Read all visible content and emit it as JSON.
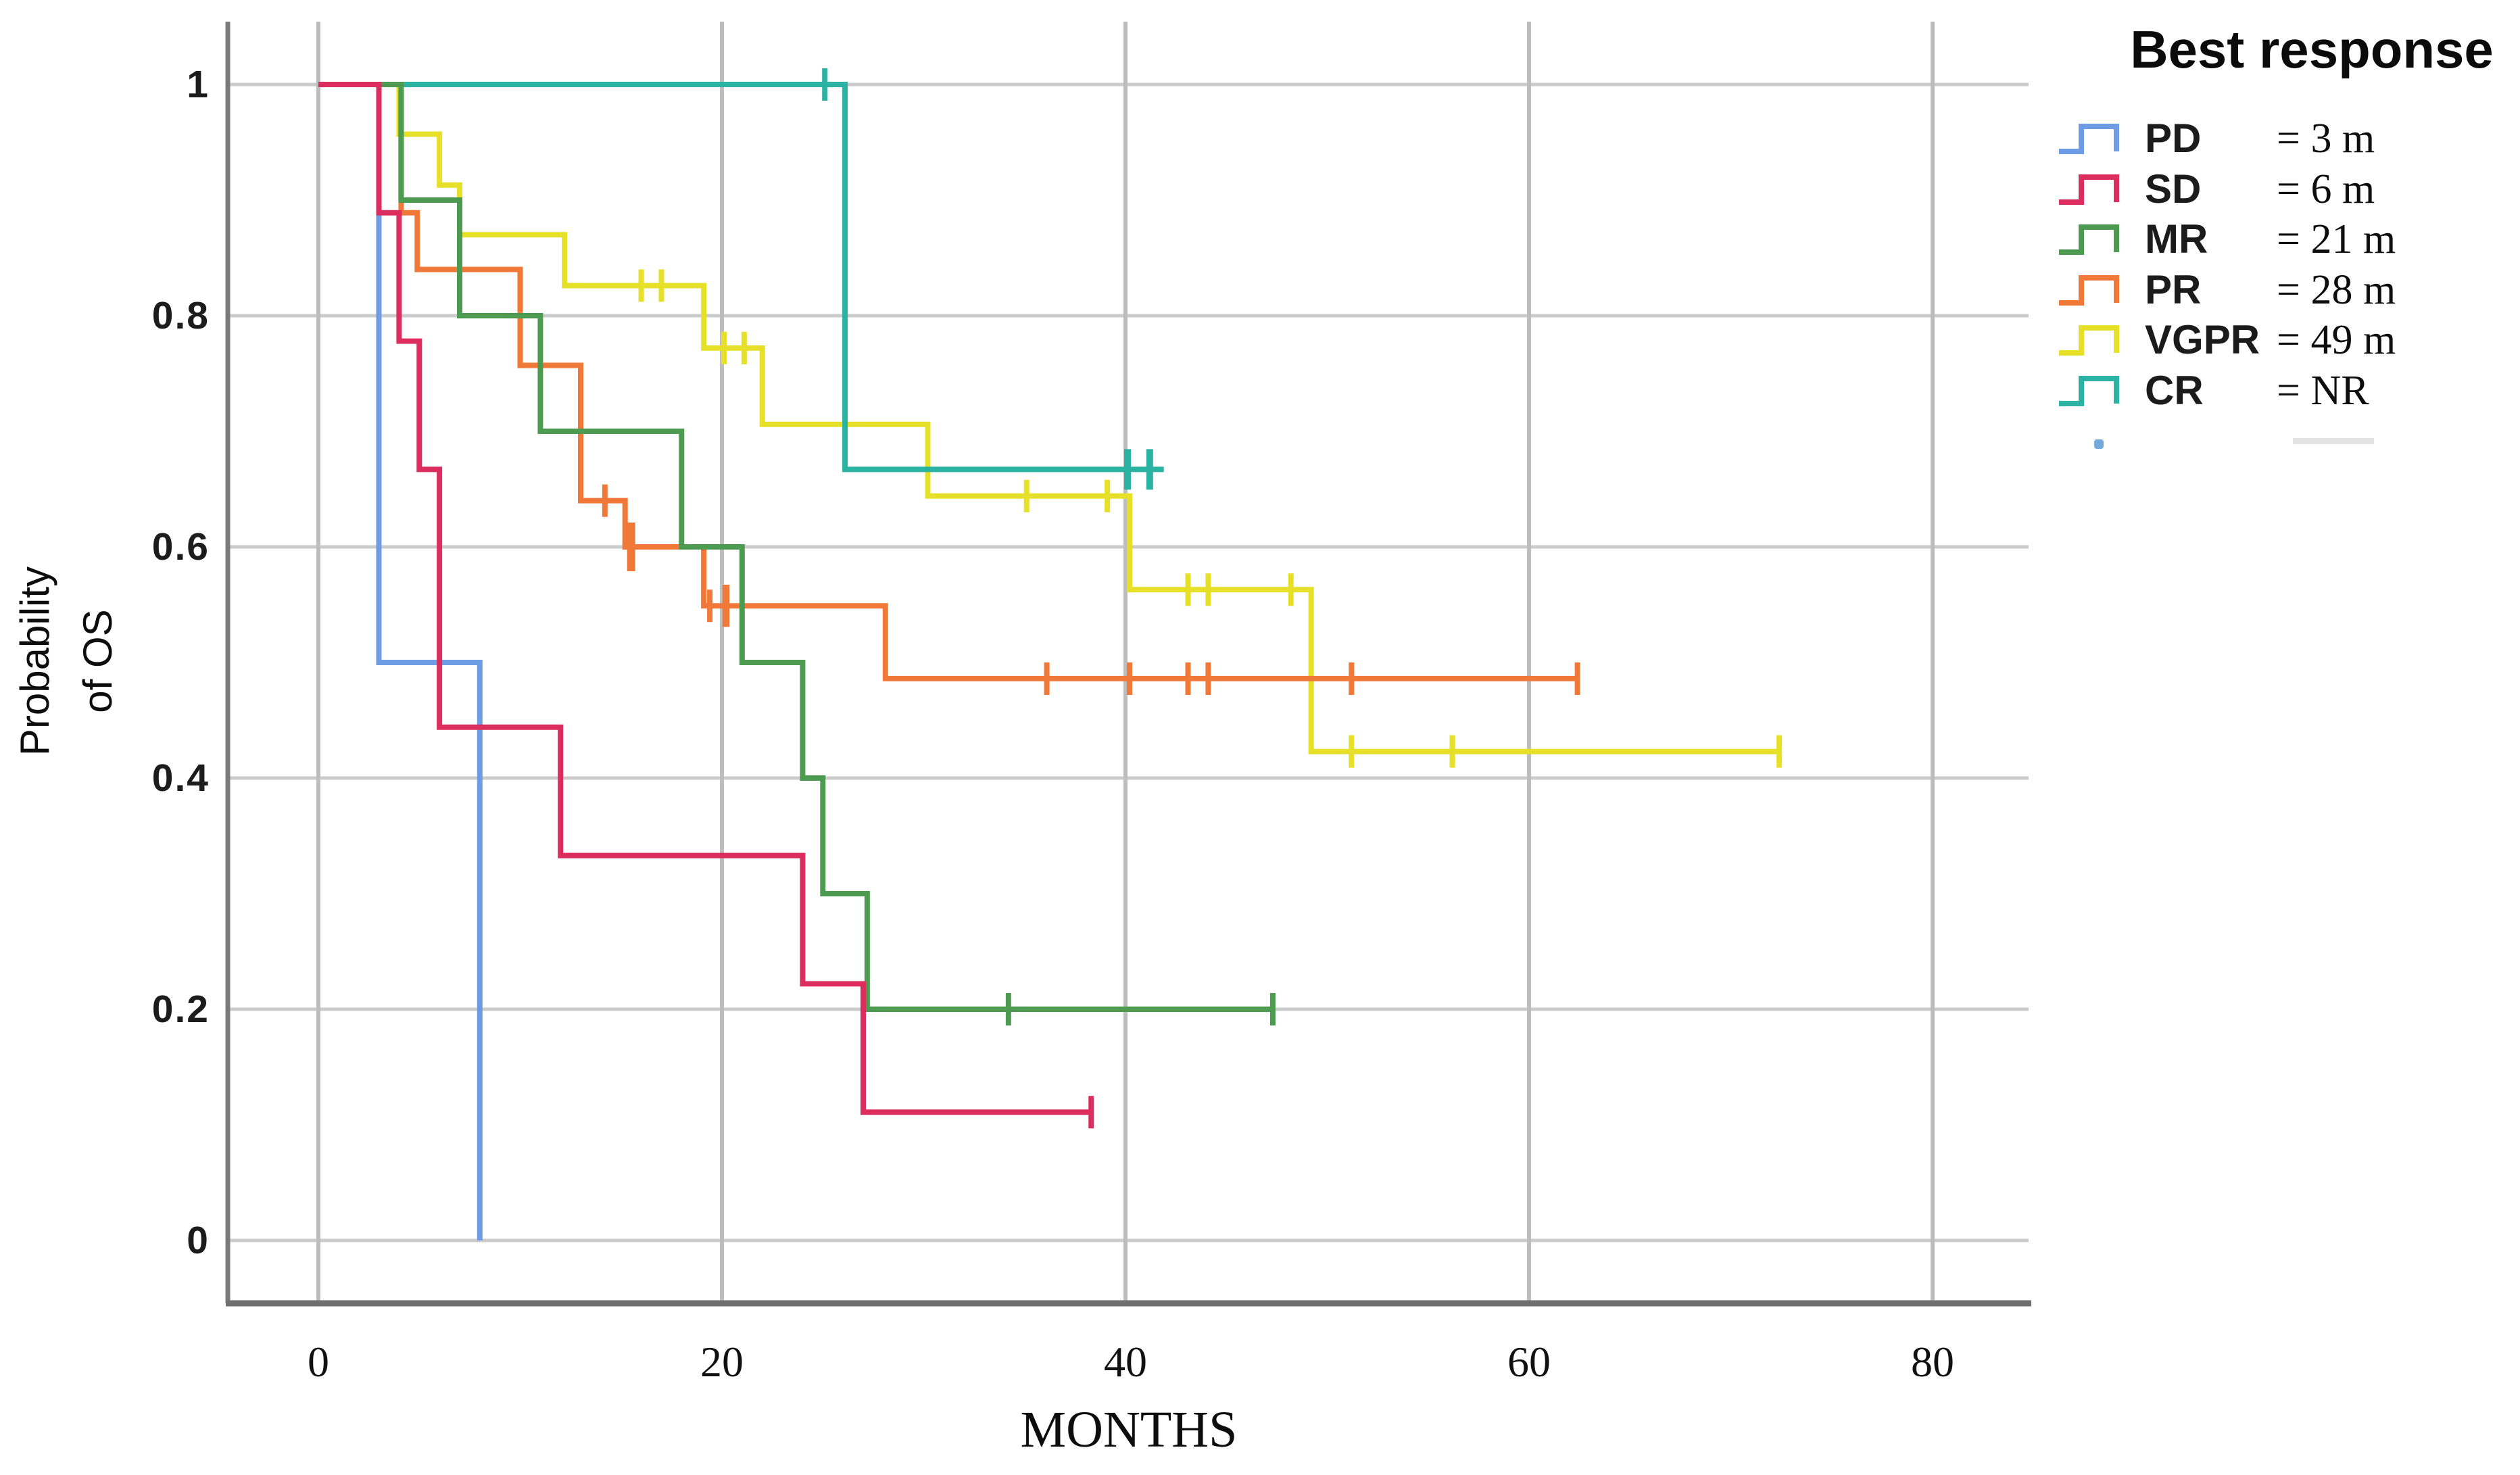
{
  "chart_data": {
    "type": "line",
    "subtype": "kaplan-meier-step-survival",
    "title": "",
    "xlabel": "MONTHS",
    "ylabel": "Probability of OS",
    "ylabel_lines": [
      "Probability",
      "of OS"
    ],
    "legend_title": "Best response",
    "legend_position": "top-right-outside",
    "grid": true,
    "xlim": [
      -4.5,
      85
    ],
    "ylim": [
      -0.055,
      1.055
    ],
    "x_ticks": [
      0,
      20,
      40,
      60,
      80
    ],
    "x_tick_labels": [
      "0",
      "20",
      "40",
      "60",
      "80"
    ],
    "y_ticks": [
      1,
      0.8,
      0.6,
      0.4,
      0.2,
      0
    ],
    "y_tick_labels": [
      "1",
      "0.8",
      "0.6",
      "0.4",
      "0.2",
      "0"
    ],
    "colors": {
      "grid_horizontal": "#cbcbcb",
      "grid_vertical": "#bdbdbd",
      "y_axis": "#7a7a7a",
      "x_axis": "#6f6f6f",
      "text": "#111111"
    },
    "draw_order": [
      "VGPR",
      "CR",
      "PR",
      "MR",
      "PD",
      "SD"
    ],
    "series": [
      {
        "name": "PD",
        "median_label": "= 3 m",
        "color": "#6D9CE5",
        "points": [
          [
            0,
            1
          ],
          [
            3,
            1
          ],
          [
            3,
            0.5
          ],
          [
            8,
            0.5
          ],
          [
            8,
            0
          ]
        ],
        "censors": []
      },
      {
        "name": "SD",
        "median_label": "= 6 m",
        "color": "#DB2E5F",
        "points": [
          [
            0,
            1
          ],
          [
            3,
            1
          ],
          [
            3,
            0.889
          ],
          [
            4,
            0.889
          ],
          [
            4,
            0.778
          ],
          [
            5,
            0.778
          ],
          [
            5,
            0.667
          ],
          [
            6,
            0.667
          ],
          [
            6,
            0.444
          ],
          [
            12,
            0.444
          ],
          [
            12,
            0.333
          ],
          [
            24,
            0.333
          ],
          [
            24,
            0.222
          ],
          [
            27,
            0.222
          ],
          [
            27,
            0.111
          ],
          [
            38.3,
            0.111
          ]
        ],
        "censors": [
          [
            38.3,
            0.111
          ]
        ]
      },
      {
        "name": "MR",
        "median_label": "= 21 m",
        "color": "#4D9B51",
        "points": [
          [
            0,
            1
          ],
          [
            4.1,
            1
          ],
          [
            4.1,
            0.9
          ],
          [
            7,
            0.9
          ],
          [
            7,
            0.8
          ],
          [
            11,
            0.8
          ],
          [
            11,
            0.7
          ],
          [
            18,
            0.7
          ],
          [
            18,
            0.6
          ],
          [
            21,
            0.6
          ],
          [
            21,
            0.5
          ],
          [
            24,
            0.5
          ],
          [
            24,
            0.4
          ],
          [
            25,
            0.4
          ],
          [
            25,
            0.3
          ],
          [
            27.2,
            0.3
          ],
          [
            27.2,
            0.2
          ],
          [
            47.3,
            0.2
          ]
        ],
        "censors": [
          [
            34.2,
            0.2
          ],
          [
            47.3,
            0.2
          ]
        ]
      },
      {
        "name": "PR",
        "median_label": "= 28 m",
        "color": "#F0793A",
        "points": [
          [
            0,
            1
          ],
          [
            4.1,
            1
          ],
          [
            4.1,
            0.889
          ],
          [
            4.9,
            0.889
          ],
          [
            4.9,
            0.84
          ],
          [
            10,
            0.84
          ],
          [
            10,
            0.757
          ],
          [
            13,
            0.757
          ],
          [
            13,
            0.64
          ],
          [
            15.2,
            0.64
          ],
          [
            15.2,
            0.6
          ],
          [
            19.1,
            0.6
          ],
          [
            19.1,
            0.549
          ],
          [
            28.1,
            0.549
          ],
          [
            28.1,
            0.486
          ],
          [
            62.4,
            0.486
          ]
        ],
        "censors": [
          [
            14.2,
            0.64
          ],
          [
            15.5,
            0.6,
            1.5
          ],
          [
            19.4,
            0.549
          ],
          [
            20.2,
            0.549,
            1.3
          ],
          [
            36.1,
            0.486
          ],
          [
            40.2,
            0.486
          ],
          [
            43.1,
            0.486
          ],
          [
            44.1,
            0.486
          ],
          [
            51.2,
            0.486
          ],
          [
            62.4,
            0.486
          ]
        ]
      },
      {
        "name": "VGPR",
        "median_label": "= 49 m",
        "color": "#E6E028",
        "points": [
          [
            0,
            1
          ],
          [
            4,
            1
          ],
          [
            4,
            0.957
          ],
          [
            6,
            0.957
          ],
          [
            6,
            0.913
          ],
          [
            7,
            0.913
          ],
          [
            7,
            0.87
          ],
          [
            12.2,
            0.87
          ],
          [
            12.2,
            0.826
          ],
          [
            19.1,
            0.826
          ],
          [
            19.1,
            0.772
          ],
          [
            22,
            0.772
          ],
          [
            22,
            0.706
          ],
          [
            30.2,
            0.706
          ],
          [
            30.2,
            0.644
          ],
          [
            40.2,
            0.644
          ],
          [
            40.2,
            0.563
          ],
          [
            49.2,
            0.563
          ],
          [
            49.2,
            0.423
          ],
          [
            72.4,
            0.423
          ]
        ],
        "censors": [
          [
            16,
            0.826
          ],
          [
            17,
            0.826
          ],
          [
            20.1,
            0.772
          ],
          [
            21.1,
            0.772
          ],
          [
            35.1,
            0.644
          ],
          [
            39.1,
            0.644
          ],
          [
            43.1,
            0.563
          ],
          [
            44.1,
            0.563
          ],
          [
            48.2,
            0.563
          ],
          [
            51.2,
            0.423
          ],
          [
            56.2,
            0.423
          ],
          [
            72.4,
            0.423
          ]
        ]
      },
      {
        "name": "CR",
        "median_label": "= NR",
        "color": "#2AB3A3",
        "points": [
          [
            0,
            1
          ],
          [
            26.1,
            1
          ],
          [
            26.1,
            0.667
          ],
          [
            41.9,
            0.667
          ]
        ],
        "censors": [
          [
            25.1,
            1
          ],
          [
            40.1,
            0.667,
            1.25
          ],
          [
            41.2,
            0.667,
            1.25
          ]
        ]
      }
    ]
  }
}
